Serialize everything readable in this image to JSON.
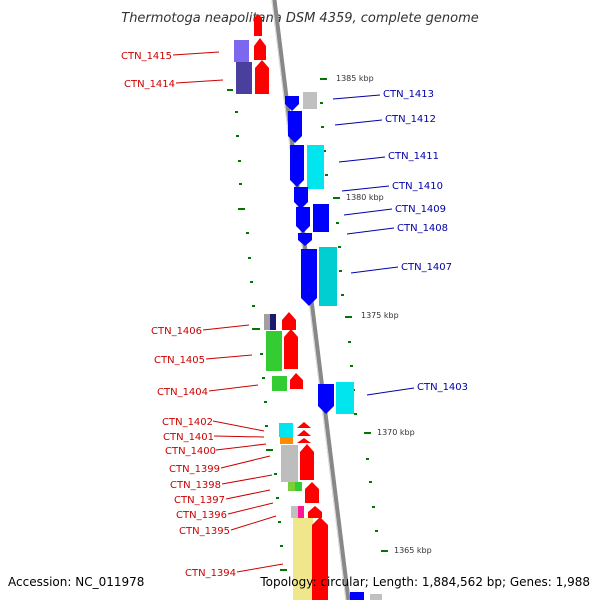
{
  "title": "Thermotoga neapolitana DSM 4359, complete genome",
  "footer": {
    "accession": "Accession: NC_011978",
    "summary": "Topology: circular; Length: 1,884,562 bp; Genes: 1,988"
  },
  "ruler": {
    "ticks": [
      "1385 kbp",
      "1380 kbp",
      "1375 kbp",
      "1370 kbp",
      "1365 kbp"
    ]
  },
  "colors": {
    "left_label": "#cc0000",
    "right_label": "#0000aa",
    "ruler_tick": "#007700",
    "backbone": "#888888"
  },
  "genes_left": [
    "CTN_1415",
    "CTN_1414",
    "CTN_1406",
    "CTN_1405",
    "CTN_1404",
    "CTN_1402",
    "CTN_1401",
    "CTN_1400",
    "CTN_1399",
    "CTN_1398",
    "CTN_1397",
    "CTN_1396",
    "CTN_1395",
    "CTN_1394"
  ],
  "genes_right": [
    "CTN_1413",
    "CTN_1412",
    "CTN_1411",
    "CTN_1410",
    "CTN_1409",
    "CTN_1408",
    "CTN_1407",
    "CTN_1403"
  ]
}
